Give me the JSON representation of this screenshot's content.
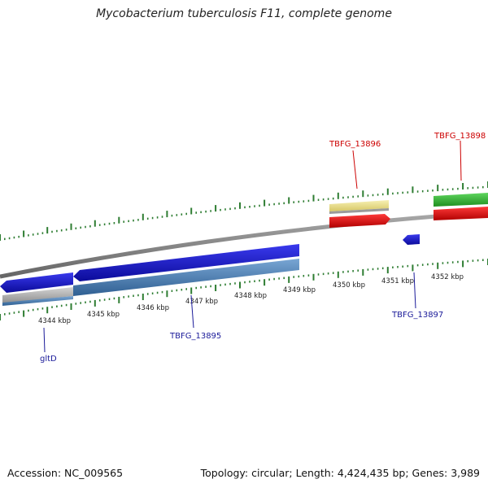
{
  "title": "Mycobacterium tuberculosis F11, complete genome",
  "footer": {
    "accession": "Accession: NC_009565",
    "summary": "Topology: circular; Length: 4,424,435 bp; Genes: 3,989"
  },
  "colors": {
    "backbone": "#8c8c8c",
    "tick": "#2e7d32",
    "forward_label": "#cc0000",
    "reverse_label": "#1a1a99",
    "cds_reverse": "#1a1acc",
    "cds_forward": "#ee1111",
    "gene_reverse": "#4f86bb",
    "gene_grey": "#b4b4b4",
    "gene_yellow": "#ece28f",
    "gene_green": "#33bb33"
  },
  "scale": {
    "labels": [
      "4344 kbp",
      "4345 kbp",
      "4346 kbp",
      "4347 kbp",
      "4348 kbp",
      "4349 kbp",
      "4350 kbp",
      "4351 kbp",
      "4352 kbp"
    ]
  },
  "genes": {
    "forward_labels": [
      "TBFG_13896",
      "TBFG_13898"
    ],
    "reverse_labels": [
      "gltD",
      "TBFG_13895",
      "TBFG_13897"
    ]
  }
}
